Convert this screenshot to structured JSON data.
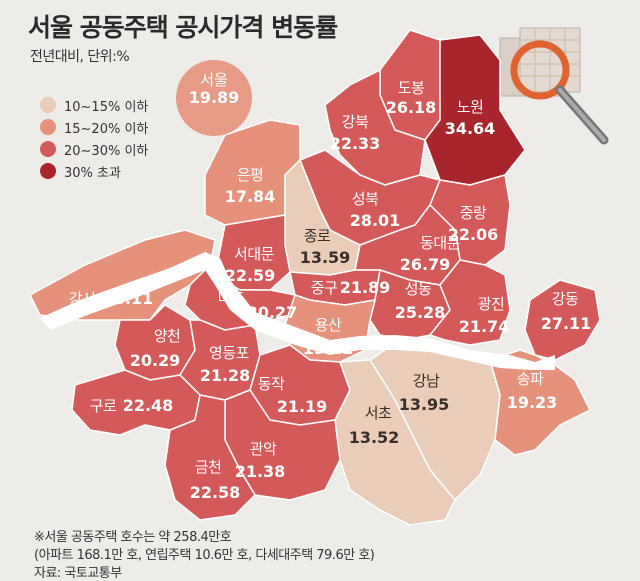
{
  "title": "서울 공동주택 공시가격 변동률",
  "subtitle": "전년대비, 단위:%",
  "seoul": {
    "name": "서울",
    "value": "19.89"
  },
  "legend": [
    {
      "label": "10∼15% 이하",
      "color": "#e9cdb8"
    },
    {
      "label": "15∼20% 이하",
      "color": "#e6917c"
    },
    {
      "label": "20∼30% 이하",
      "color": "#d45a5a"
    },
    {
      "label": "30% 초과",
      "color": "#a8262b"
    }
  ],
  "colors": {
    "river": "#ffffff",
    "background": "#eeece9",
    "border": "#ffffff"
  },
  "districts": [
    {
      "id": "dobong",
      "name": "도봉",
      "value": "26.18"
    },
    {
      "id": "nowon",
      "name": "노원",
      "value": "34.64"
    },
    {
      "id": "gangbuk",
      "name": "강북",
      "value": "22.33"
    },
    {
      "id": "eunpyeong",
      "name": "은평",
      "value": "17.84"
    },
    {
      "id": "seongbuk",
      "name": "성북",
      "value": "28.01"
    },
    {
      "id": "jungnang",
      "name": "중랑",
      "value": "22.06"
    },
    {
      "id": "jongno",
      "name": "종로",
      "value": "13.59"
    },
    {
      "id": "dongdaemun",
      "name": "동대문",
      "value": "26.79"
    },
    {
      "id": "seodaemun",
      "name": "서대문",
      "value": "22.59"
    },
    {
      "id": "junggu",
      "name": "중구",
      "value": "21.89"
    },
    {
      "id": "gangseo",
      "name": "강서",
      "value": "18.11"
    },
    {
      "id": "mapo",
      "name": "마포",
      "value": "20.27"
    },
    {
      "id": "seongdong",
      "name": "성동",
      "value": "25.28"
    },
    {
      "id": "gwangjin",
      "name": "광진",
      "value": "21.74"
    },
    {
      "id": "gangdong",
      "name": "강동",
      "value": "27.11"
    },
    {
      "id": "yongsan",
      "name": "용산",
      "value": "15.22"
    },
    {
      "id": "yangcheon",
      "name": "양천",
      "value": "20.29"
    },
    {
      "id": "yeongdeungpo",
      "name": "영등포",
      "value": "21.28"
    },
    {
      "id": "gangnam",
      "name": "강남",
      "value": "13.95"
    },
    {
      "id": "songpa",
      "name": "송파",
      "value": "19.23"
    },
    {
      "id": "guro",
      "name": "구로",
      "value": "22.48"
    },
    {
      "id": "dongjak",
      "name": "동작",
      "value": "21.19"
    },
    {
      "id": "seocho",
      "name": "서초",
      "value": "13.52"
    },
    {
      "id": "gwanak",
      "name": "관악",
      "value": "21.38"
    },
    {
      "id": "geumcheon",
      "name": "금천",
      "value": "22.58"
    }
  ],
  "footnotes": [
    "※서울 공동주택 호수는 약 258.4만호",
    "(아파트 168.1만 호, 연립주택 10.6만 호, 다세대주택 79.6만 호)",
    "자료: 국토교통부"
  ],
  "decor_icon": "magnifying-glass-over-buildings-icon"
}
